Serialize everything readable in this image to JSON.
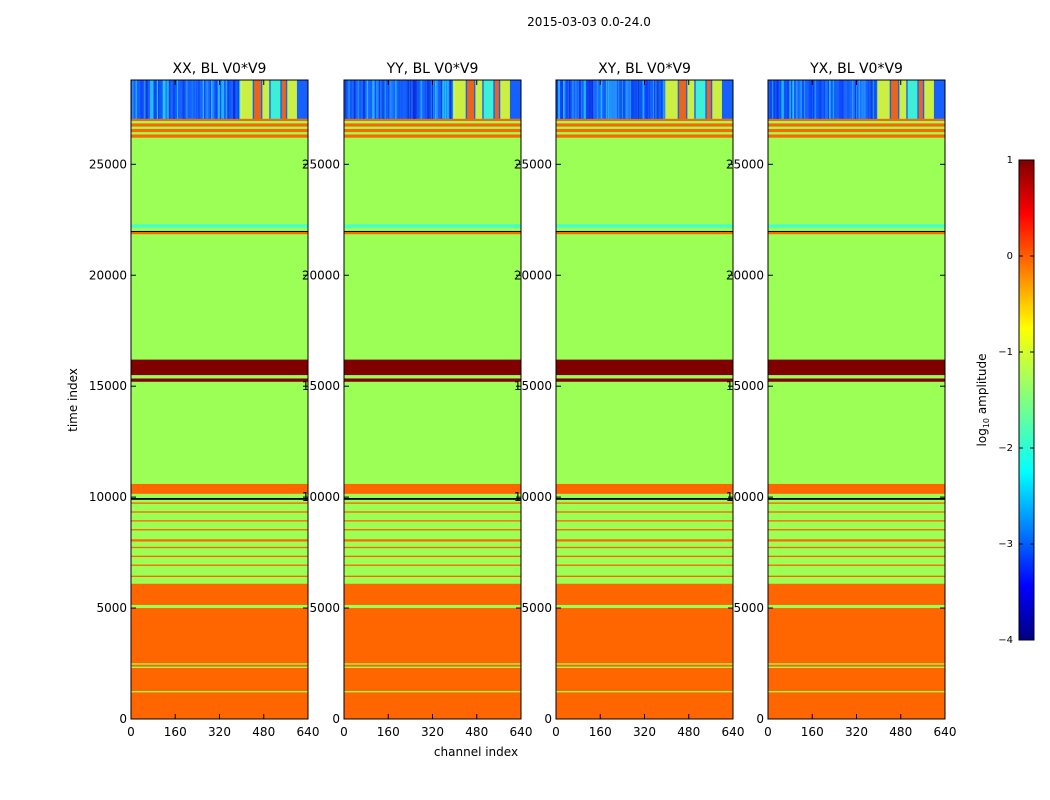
{
  "figure": {
    "suptitle": "2015-03-03 0.0-24.0"
  },
  "chart_data": {
    "type": "heatmap",
    "title": "2015-03-03 0.0-24.0",
    "xlabel": "channel index",
    "ylabel": "time index",
    "xlim": [
      0,
      640
    ],
    "ylim": [
      0,
      28800
    ],
    "x_ticks": [
      0,
      160,
      320,
      480,
      640
    ],
    "y_ticks": [
      0,
      5000,
      10000,
      15000,
      20000,
      25000
    ],
    "panels": [
      {
        "name": "xx",
        "title": "XX, BL V0*V9"
      },
      {
        "name": "yy",
        "title": "YY, BL V0*V9"
      },
      {
        "name": "xy",
        "title": "XY, BL V0*V9"
      },
      {
        "name": "yx",
        "title": "YX, BL V0*V9"
      }
    ],
    "colorbar": {
      "label": "log10 amplitude",
      "label_main": "log",
      "label_sub": "10",
      "label_tail": " amplitude",
      "range": [
        -4,
        1
      ],
      "ticks": [
        1,
        0,
        -1,
        -2,
        -3,
        -4
      ],
      "tick_labels": [
        "1",
        "0",
        "−1",
        "−2",
        "−3",
        "−4"
      ],
      "stops": [
        {
          "v": -4,
          "color": "#000080"
        },
        {
          "v": -3.44,
          "color": "#0000ff"
        },
        {
          "v": -2.25,
          "color": "#00ffff"
        },
        {
          "v": -1.5,
          "color": "#80ff80"
        },
        {
          "v": -0.75,
          "color": "#ffff00"
        },
        {
          "v": 0.44,
          "color": "#ff0000"
        },
        {
          "v": 1,
          "color": "#800000"
        }
      ]
    },
    "colors": {
      "background": "#66ff66",
      "green": "#9bff55",
      "orange": "#ff6600",
      "darkred": "#800000",
      "black": "#000000",
      "cyan": "#40ffd0",
      "yellow": "#e0ff30",
      "noise_blue": "#1560ff"
    },
    "time_bands": [
      {
        "from": 0,
        "to": 6100,
        "color": "orange"
      },
      {
        "from": 1200,
        "to": 1260,
        "color": "green"
      },
      {
        "from": 2300,
        "to": 2360,
        "color": "green"
      },
      {
        "from": 2450,
        "to": 2510,
        "color": "green"
      },
      {
        "from": 5000,
        "to": 5140,
        "color": "green"
      },
      {
        "from": 6100,
        "to": 10000,
        "color": "green"
      },
      {
        "from": 6400,
        "to": 6460,
        "color": "orange"
      },
      {
        "from": 6900,
        "to": 6960,
        "color": "orange"
      },
      {
        "from": 7300,
        "to": 7360,
        "color": "orange"
      },
      {
        "from": 7700,
        "to": 7760,
        "color": "orange"
      },
      {
        "from": 8000,
        "to": 8100,
        "color": "orange"
      },
      {
        "from": 8500,
        "to": 8560,
        "color": "orange"
      },
      {
        "from": 8900,
        "to": 8960,
        "color": "orange"
      },
      {
        "from": 9300,
        "to": 9360,
        "color": "orange"
      },
      {
        "from": 9700,
        "to": 9760,
        "color": "orange"
      },
      {
        "from": 9880,
        "to": 9960,
        "color": "black"
      },
      {
        "from": 9960,
        "to": 10150,
        "color": "green"
      },
      {
        "from": 10150,
        "to": 10600,
        "color": "orange"
      },
      {
        "from": 10600,
        "to": 15200,
        "color": "green"
      },
      {
        "from": 15200,
        "to": 15350,
        "color": "darkred"
      },
      {
        "from": 15350,
        "to": 15500,
        "color": "green"
      },
      {
        "from": 15500,
        "to": 16200,
        "color": "darkred"
      },
      {
        "from": 16200,
        "to": 21850,
        "color": "green"
      },
      {
        "from": 21850,
        "to": 21950,
        "color": "orange"
      },
      {
        "from": 21950,
        "to": 22000,
        "color": "black"
      },
      {
        "from": 22000,
        "to": 22150,
        "color": "green"
      },
      {
        "from": 22150,
        "to": 22300,
        "color": "cyan"
      },
      {
        "from": 22300,
        "to": 26200,
        "color": "green"
      },
      {
        "from": 26200,
        "to": 26350,
        "color": "orange"
      },
      {
        "from": 26350,
        "to": 26450,
        "color": "green"
      },
      {
        "from": 26450,
        "to": 26600,
        "color": "orange"
      },
      {
        "from": 26600,
        "to": 26700,
        "color": "green"
      },
      {
        "from": 26700,
        "to": 26850,
        "color": "orange"
      },
      {
        "from": 26850,
        "to": 26950,
        "color": "green"
      },
      {
        "from": 26950,
        "to": 27050,
        "color": "orange"
      },
      {
        "from": 27050,
        "to": 28800,
        "color": "noise_blue"
      }
    ],
    "noisy_region": {
      "from": 27050,
      "to": 28800
    },
    "bright_channels": [
      {
        "from": 395,
        "to": 440,
        "color": "yellow"
      },
      {
        "from": 445,
        "to": 470,
        "color": "orange"
      },
      {
        "from": 475,
        "to": 500,
        "color": "yellow"
      },
      {
        "from": 505,
        "to": 540,
        "color": "cyan"
      },
      {
        "from": 545,
        "to": 560,
        "color": "orange"
      },
      {
        "from": 565,
        "to": 600,
        "color": "yellow"
      }
    ]
  }
}
